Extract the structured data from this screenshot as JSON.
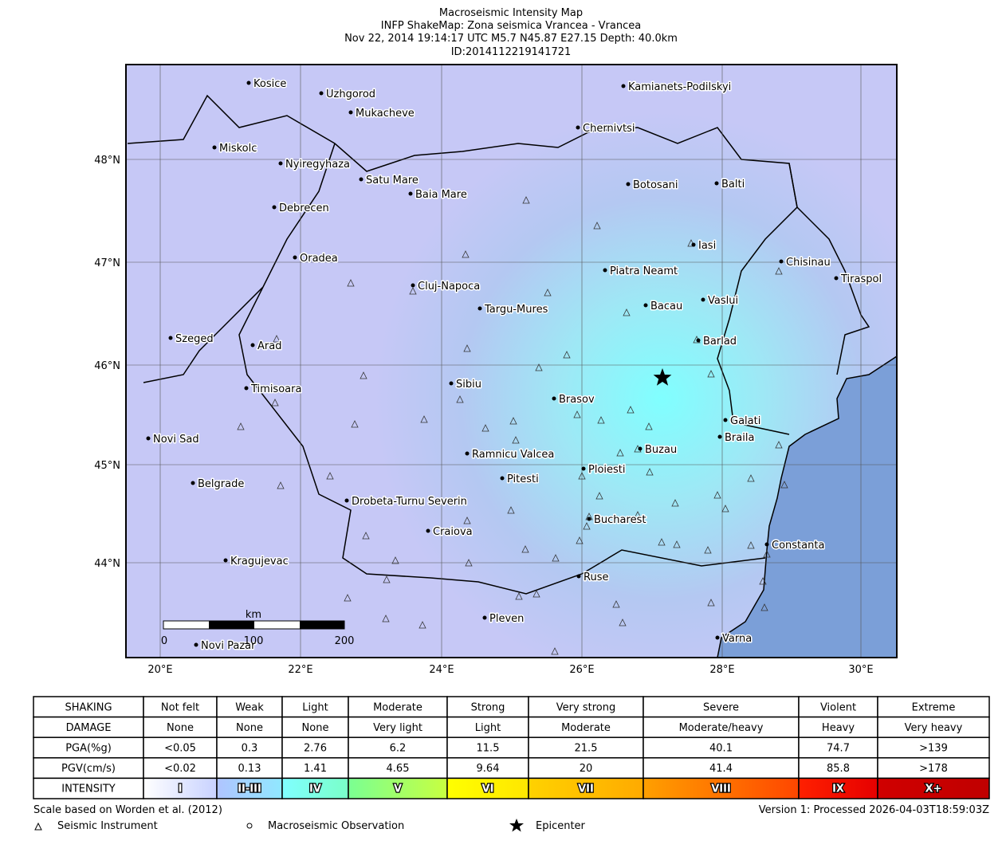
{
  "header": {
    "lines": [
      "Macroseismic Intensity Map",
      "INFP ShakeMap: Zona seismica Vrancea - Vrancea",
      "Nov 22, 2014 19:14:17 UTC M5.7 N45.87 E27.15 Depth: 40.0km",
      "ID:2014112219141721"
    ]
  },
  "map": {
    "cities": [
      "Kosice",
      "Uzhgorod",
      "Mukacheve",
      "Kamianets-Podilskyi",
      "Chernivtsi",
      "Miskolc",
      "Nyiregyhaza",
      "Satu Mare",
      "Baia Mare",
      "Botosani",
      "Balti",
      "Debrecen",
      "Iasi",
      "Oradea",
      "Chisinau",
      "Piatra Neamt",
      "Tiraspol",
      "Cluj-Napoca",
      "Vaslui",
      "Targu-Mures",
      "Bacau",
      "Szeged",
      "Arad",
      "Barlad",
      "Sibiu",
      "Timisoara",
      "Brasov",
      "Galati",
      "Braila",
      "Novi Sad",
      "Buzau",
      "Ramnicu Valcea",
      "Ploiesti",
      "Pitesti",
      "Belgrade",
      "Drobeta-Turnu Severin",
      "Bucharest",
      "Craiova",
      "Constanta",
      "Kragujevac",
      "Ruse",
      "Pleven",
      "Varna",
      "Novi Pazar"
    ],
    "lat_labels": [
      "48°N",
      "47°N",
      "46°N",
      "45°N",
      "44°N"
    ],
    "lon_labels": [
      "20°E",
      "22°E",
      "24°E",
      "26°E",
      "28°E",
      "30°E"
    ],
    "scale_bar": {
      "unit": "km",
      "labels": [
        "0",
        "100",
        "200"
      ]
    }
  },
  "legend_table": {
    "rows": [
      [
        "SHAKING",
        "Not felt",
        "Weak",
        "Light",
        "Moderate",
        "Strong",
        "Very strong",
        "Severe",
        "Violent",
        "Extreme"
      ],
      [
        "DAMAGE",
        "None",
        "None",
        "None",
        "Very light",
        "Light",
        "Moderate",
        "Moderate/heavy",
        "Heavy",
        "Very heavy"
      ],
      [
        "PGA(%g)",
        "<0.05",
        "0.3",
        "2.76",
        "6.2",
        "11.5",
        "21.5",
        "40.1",
        "74.7",
        ">139"
      ],
      [
        "PGV(cm/s)",
        "<0.02",
        "0.13",
        "1.41",
        "4.65",
        "9.64",
        "20",
        "41.4",
        "85.8",
        ">178"
      ],
      [
        "INTENSITY",
        "I",
        "II-III",
        "IV",
        "V",
        "VI",
        "VII",
        "VIII",
        "IX",
        "X+"
      ]
    ]
  },
  "footer": {
    "scale_note": "Scale based on Worden et al. (2012)",
    "version": "Version 1: Processed 2026-04-03T18:59:03Z",
    "symbols": [
      "Seismic Instrument",
      "Macroseismic Observation",
      "Epicenter"
    ]
  }
}
